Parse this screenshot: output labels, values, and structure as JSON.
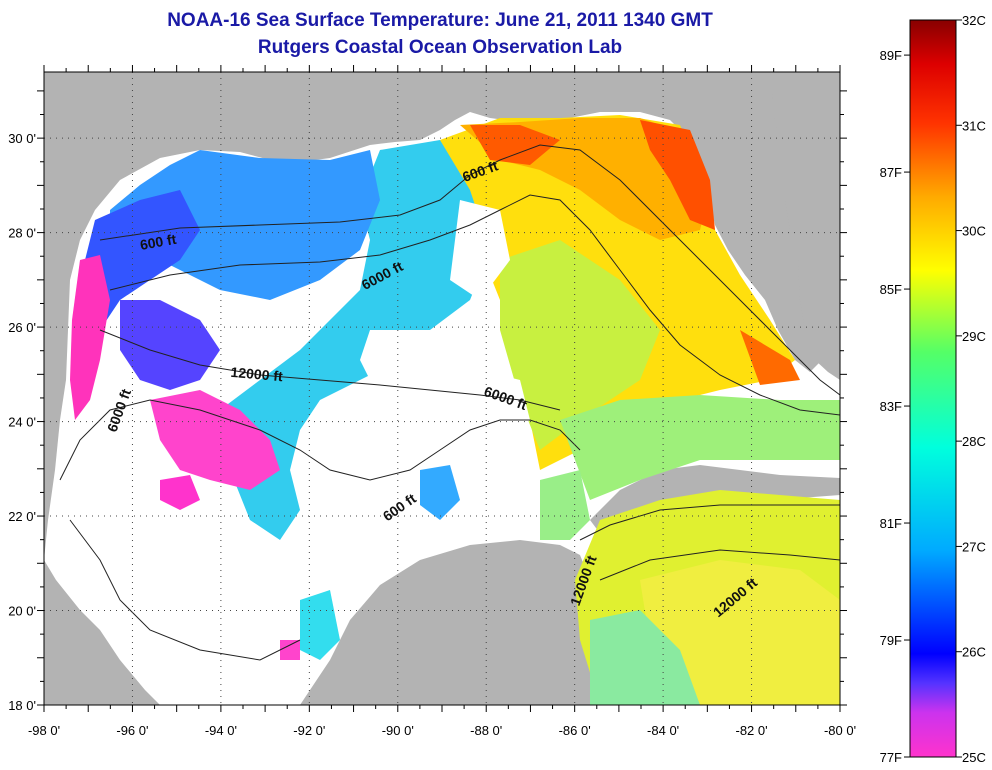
{
  "title": "NOAA-16 Sea Surface Temperature:  June 21, 2011 1340 GMT",
  "subtitle": "Rutgers Coastal Ocean Observation Lab",
  "axes": {
    "lon_labels": [
      "-98 0'",
      "-96 0'",
      "-94 0'",
      "-92 0'",
      "-90 0'",
      "-88 0'",
      "-86 0'",
      "-84 0'",
      "-82 0'",
      "-80 0'"
    ],
    "lon_values": [
      -98,
      -96,
      -94,
      -92,
      -90,
      -88,
      -86,
      -84,
      -82,
      -80
    ],
    "lat_labels": [
      "30 0'",
      "28 0'",
      "26 0'",
      "24 0'",
      "22 0'",
      "20 0'",
      "18 0'"
    ],
    "lat_values": [
      30,
      28,
      26,
      24,
      22,
      20,
      18
    ],
    "lon_range": [
      -98,
      -80
    ],
    "lat_range": [
      18,
      31.4
    ],
    "grid": true
  },
  "contour_labels": [
    {
      "text": "600 ft",
      "lon": -88.1,
      "lat": 29.2,
      "rotate": -20
    },
    {
      "text": "600 ft",
      "lon": -95.4,
      "lat": 27.7,
      "rotate": -10
    },
    {
      "text": "6000 ft",
      "lon": -90.3,
      "lat": 27.0,
      "rotate": -28
    },
    {
      "text": "12000 ft",
      "lon": -93.2,
      "lat": 24.9,
      "rotate": 5
    },
    {
      "text": "6000 ft",
      "lon": -87.6,
      "lat": 24.4,
      "rotate": 20
    },
    {
      "text": "6000 ft",
      "lon": -96.2,
      "lat": 24.2,
      "rotate": -70
    },
    {
      "text": "600 ft",
      "lon": -89.9,
      "lat": 22.1,
      "rotate": -35
    },
    {
      "text": "12000 ft",
      "lon": -85.7,
      "lat": 20.6,
      "rotate": -70
    },
    {
      "text": "12000 ft",
      "lon": -82.3,
      "lat": 20.2,
      "rotate": -40
    }
  ],
  "colorbar": {
    "celsius_labels": [
      "32C",
      "31C",
      "30C",
      "29C",
      "28C",
      "27C",
      "26C",
      "25C"
    ],
    "celsius_values": [
      32,
      31,
      30,
      29,
      28,
      27,
      26,
      25
    ],
    "fahrenheit_labels": [
      "89F",
      "87F",
      "85F",
      "83F",
      "81F",
      "79F",
      "77F"
    ],
    "fahrenheit_values": [
      89,
      87,
      85,
      83,
      81,
      79,
      77
    ],
    "colors": [
      "#ff33cc",
      "#aa33ff",
      "#0000ff",
      "#00bbff",
      "#00ffff",
      "#33ff99",
      "#aaff33",
      "#ffff00",
      "#ff9900",
      "#ff3300",
      "#dd0000",
      "#880000"
    ]
  },
  "map_colors": {
    "land": "#b3b3b3",
    "no_data": "#ffffff"
  }
}
